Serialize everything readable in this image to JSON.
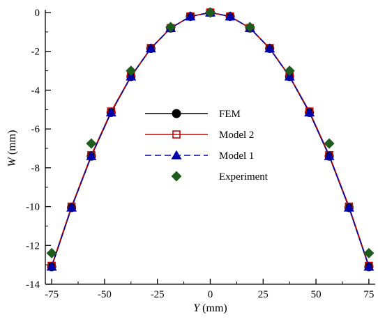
{
  "chart_data": {
    "type": "line",
    "title": "",
    "xlabel_var": "Y",
    "xlabel_unit": "(mm)",
    "ylabel_var": "W",
    "ylabel_unit": "(mm)",
    "xlim": [
      -78,
      78
    ],
    "ylim": [
      -14,
      0
    ],
    "xticks": [
      -75,
      -50,
      -25,
      0,
      25,
      50,
      75
    ],
    "xtick_labels": [
      "-75",
      "-50",
      "-25",
      "0",
      "25",
      "50",
      "75"
    ],
    "yticks": [
      0,
      -2,
      -4,
      -6,
      -8,
      -10,
      -12,
      -14
    ],
    "ytick_labels": [
      "0",
      "-2",
      "-4",
      "-6",
      "-8",
      "-10",
      "-12",
      "-14"
    ],
    "grid": false,
    "legend_position": "center",
    "series": [
      {
        "name": "FEM",
        "color": "#000000",
        "line": "solid",
        "marker": "circle",
        "x": [
          -75,
          -65.6,
          -56.25,
          -46.9,
          -37.5,
          -28.1,
          -18.75,
          -9.4,
          0,
          9.4,
          18.75,
          28.1,
          37.5,
          46.9,
          56.25,
          65.6,
          75
        ],
        "y": [
          -13.1,
          -10.05,
          -7.4,
          -5.15,
          -3.3,
          -1.85,
          -0.8,
          -0.2,
          0,
          -0.2,
          -0.8,
          -1.85,
          -3.3,
          -5.15,
          -7.4,
          -10.05,
          -13.1
        ]
      },
      {
        "name": "Model 2",
        "color": "#cc0000",
        "line": "solid",
        "marker": "square-open",
        "x": [
          -75,
          -65.6,
          -56.25,
          -46.9,
          -37.5,
          -28.1,
          -18.75,
          -9.4,
          0,
          9.4,
          18.75,
          28.1,
          37.5,
          46.9,
          56.25,
          65.6,
          75
        ],
        "y": [
          -13.05,
          -10.0,
          -7.35,
          -5.1,
          -3.28,
          -1.83,
          -0.8,
          -0.2,
          0,
          -0.2,
          -0.8,
          -1.83,
          -3.28,
          -5.1,
          -7.35,
          -10.0,
          -13.05
        ]
      },
      {
        "name": "Model 1",
        "color": "#0000aa",
        "line": "dashed",
        "marker": "triangle",
        "x": [
          -75,
          -65.6,
          -56.25,
          -46.9,
          -37.5,
          -28.1,
          -18.75,
          -9.4,
          0,
          9.4,
          18.75,
          28.1,
          37.5,
          46.9,
          56.25,
          65.6,
          75
        ],
        "y": [
          -13.1,
          -10.05,
          -7.4,
          -5.15,
          -3.3,
          -1.85,
          -0.8,
          -0.2,
          0,
          -0.2,
          -0.8,
          -1.85,
          -3.3,
          -5.15,
          -7.4,
          -10.05,
          -13.1
        ]
      },
      {
        "name": "Experiment",
        "color": "#1e5c1e",
        "line": "none",
        "marker": "diamond",
        "x": [
          -75,
          -56.25,
          -37.5,
          -18.75,
          0,
          18.75,
          37.5,
          56.25,
          75
        ],
        "y": [
          -12.4,
          -6.75,
          -3.0,
          -0.75,
          0,
          -0.75,
          -3.0,
          -6.75,
          -12.4
        ]
      }
    ]
  }
}
